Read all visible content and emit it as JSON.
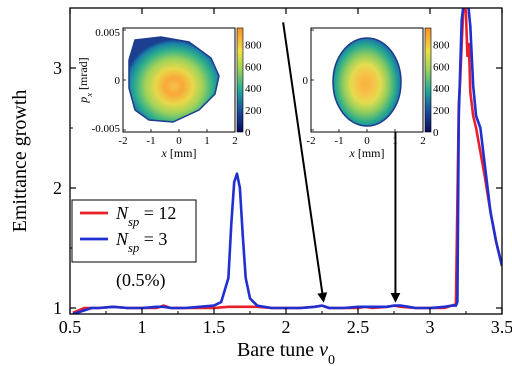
{
  "chart_data": {
    "type": "line",
    "xlabel": "Bare tune",
    "xlabel_symbol": "ν",
    "xlabel_sub": "0",
    "ylabel": "Emittance growth",
    "xlim": [
      0.5,
      3.5
    ],
    "ylim": [
      0.95,
      3.5
    ],
    "xticks": [
      "0.5",
      "1",
      "1.5",
      "2",
      "2.5",
      "3",
      "3.5"
    ],
    "yticks": [
      "1",
      "2",
      "3"
    ],
    "colors": {
      "red": "#e8202a",
      "blue": "#1f2fd0",
      "arrow": "#000000"
    },
    "legend": {
      "placement": "left",
      "entries": [
        {
          "prefix": "N",
          "sub": "sp",
          "suffix": " = 12",
          "color": "#e8202a"
        },
        {
          "prefix": "N",
          "sub": "sp",
          "suffix": " = 3",
          "color": "#1f2fd0"
        }
      ],
      "note": "(0.5%)"
    },
    "series": [
      {
        "color": "#e8202a",
        "x": [
          0.52,
          0.6,
          0.7,
          0.8,
          0.9,
          1.0,
          1.1,
          1.15,
          1.2,
          1.3,
          1.4,
          1.5,
          1.6,
          1.7,
          1.8,
          1.9,
          2.0,
          2.1,
          2.2,
          2.25,
          2.3,
          2.4,
          2.5,
          2.55,
          2.6,
          2.7,
          2.75,
          2.8,
          2.9,
          3.0,
          3.1,
          3.15,
          3.18,
          3.2,
          3.21,
          3.22,
          3.23,
          3.24,
          3.25,
          3.26,
          3.27,
          3.28,
          3.3,
          3.32,
          3.35,
          3.38,
          3.42,
          3.46,
          3.5
        ],
        "y": [
          0.96,
          1.0,
          1.0,
          1.01,
          1.0,
          1.0,
          1.0,
          1.02,
          1.0,
          1.0,
          1.0,
          1.0,
          1.01,
          1.01,
          1.01,
          1.0,
          1.0,
          1.0,
          1.01,
          1.02,
          1.0,
          1.0,
          1.0,
          1.01,
          1.0,
          1.01,
          1.02,
          1.01,
          1.0,
          1.0,
          1.0,
          1.02,
          1.03,
          2.7,
          2.9,
          3.2,
          3.45,
          3.6,
          3.45,
          3.1,
          3.2,
          2.8,
          2.6,
          2.5,
          2.3,
          2.1,
          1.8,
          1.55,
          1.35
        ]
      },
      {
        "color": "#1f2fd0",
        "x": [
          0.52,
          0.6,
          0.65,
          0.7,
          0.8,
          0.9,
          1.0,
          1.1,
          1.15,
          1.2,
          1.3,
          1.4,
          1.5,
          1.55,
          1.6,
          1.62,
          1.64,
          1.66,
          1.68,
          1.7,
          1.72,
          1.75,
          1.8,
          1.9,
          2.0,
          2.1,
          2.2,
          2.25,
          2.3,
          2.4,
          2.5,
          2.55,
          2.6,
          2.7,
          2.75,
          2.8,
          2.85,
          2.9,
          3.0,
          3.1,
          3.15,
          3.18,
          3.19,
          3.2,
          3.22,
          3.24,
          3.26,
          3.28,
          3.3,
          3.32,
          3.35,
          3.38,
          3.42,
          3.46,
          3.5
        ],
        "y": [
          0.95,
          0.98,
          1.0,
          1.0,
          1.01,
          1.0,
          1.0,
          1.01,
          1.01,
          1.0,
          1.0,
          1.01,
          1.02,
          1.05,
          1.25,
          1.7,
          2.05,
          2.12,
          2.0,
          1.6,
          1.25,
          1.08,
          1.02,
          1.0,
          1.0,
          1.0,
          1.01,
          1.02,
          1.0,
          1.0,
          1.01,
          1.01,
          1.01,
          1.01,
          1.02,
          1.02,
          1.01,
          1.0,
          1.0,
          1.01,
          1.02,
          1.02,
          1.05,
          2.6,
          3.4,
          3.6,
          3.6,
          3.35,
          2.85,
          2.6,
          2.5,
          2.2,
          1.8,
          1.55,
          1.35
        ]
      }
    ],
    "annotations": [
      {
        "type": "arrow",
        "from": [
          1.98,
          3.38
        ],
        "to": [
          2.26,
          1.06
        ]
      },
      {
        "type": "arrow",
        "from": [
          2.76,
          2.72
        ],
        "to": [
          2.76,
          1.06
        ]
      }
    ],
    "insets": [
      {
        "xlabel": "x [mm]",
        "ylabel_sym": "p",
        "ylabel_sub": "x",
        "ylabel_unit": " [mrad]",
        "xticks": [
          "-2",
          "-1",
          "0",
          "1",
          "2"
        ],
        "yticks": [
          "0.005",
          "0",
          "-0.005"
        ],
        "cbar_ticks": [
          "800",
          "600",
          "400",
          "200",
          "0"
        ],
        "cbar_max": 950,
        "shape": "triangle"
      },
      {
        "xlabel": "x [mm]",
        "xticks": [
          "-2",
          "-1",
          "0",
          "1",
          "2"
        ],
        "cbar_ticks": [
          "800",
          "600",
          "400",
          "200",
          "0"
        ],
        "cbar_max": 950,
        "shape": "ellipse"
      }
    ]
  }
}
